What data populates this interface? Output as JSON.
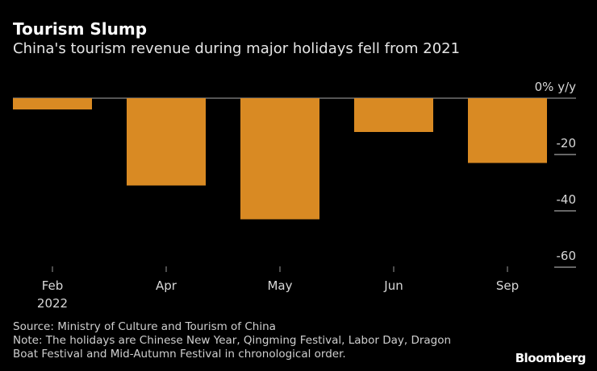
{
  "title": "Tourism Slump",
  "subtitle": "China's tourism revenue during major holidays fell from 2021",
  "source": "Source: Ministry of Culture and Tourism of China",
  "note_lines": [
    "Note: The holidays are Chinese New Year, Qingming Festival, Labor Day, Dragon",
    "Boat Festival and Mid-Autumn Festival in chronological order."
  ],
  "logo": "Bloomberg",
  "chart_data": {
    "type": "bar",
    "categories": [
      "Feb",
      "Apr",
      "May",
      "Jun",
      "Sep"
    ],
    "category_sublabels": [
      "2022",
      "",
      "",
      "",
      ""
    ],
    "values": [
      -4,
      -31,
      -43,
      -12,
      -23
    ],
    "ylabel": "% y/y",
    "yticks": [
      0,
      -20,
      -40,
      -60
    ],
    "ytick_labels": [
      "0% y/y",
      "-20",
      "-40",
      "-60"
    ],
    "ylim": [
      -60,
      0
    ],
    "y_axis_position": "right",
    "grid": false,
    "bar_color": "#d98a23"
  }
}
